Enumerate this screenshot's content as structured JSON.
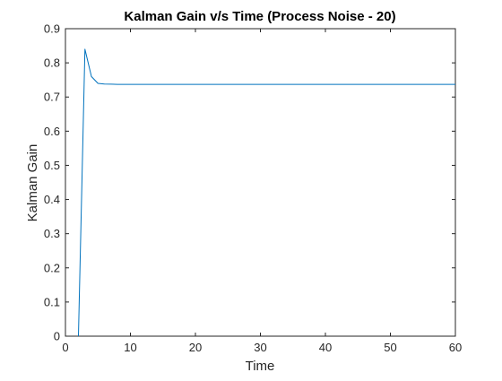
{
  "chart_data": {
    "type": "line",
    "title": "Kalman Gain v/s Time (Process Noise - 20)",
    "xlabel": "Time",
    "ylabel": "Kalman Gain",
    "xlim": [
      0,
      60
    ],
    "ylim": [
      0,
      0.9
    ],
    "xticks": [
      0,
      10,
      20,
      30,
      40,
      50,
      60
    ],
    "yticks": [
      0,
      0.1,
      0.2,
      0.3,
      0.4,
      0.5,
      0.6,
      0.7,
      0.8,
      0.9
    ],
    "grid": false,
    "box": true,
    "series": [
      {
        "color": "#0072BD",
        "x": [
          2,
          3,
          4,
          5,
          6,
          7,
          8,
          9,
          10,
          15,
          20,
          30,
          40,
          50,
          60
        ],
        "y": [
          0,
          0.84,
          0.76,
          0.74,
          0.738,
          0.7375,
          0.737,
          0.737,
          0.737,
          0.737,
          0.737,
          0.737,
          0.737,
          0.737,
          0.737
        ]
      }
    ]
  }
}
